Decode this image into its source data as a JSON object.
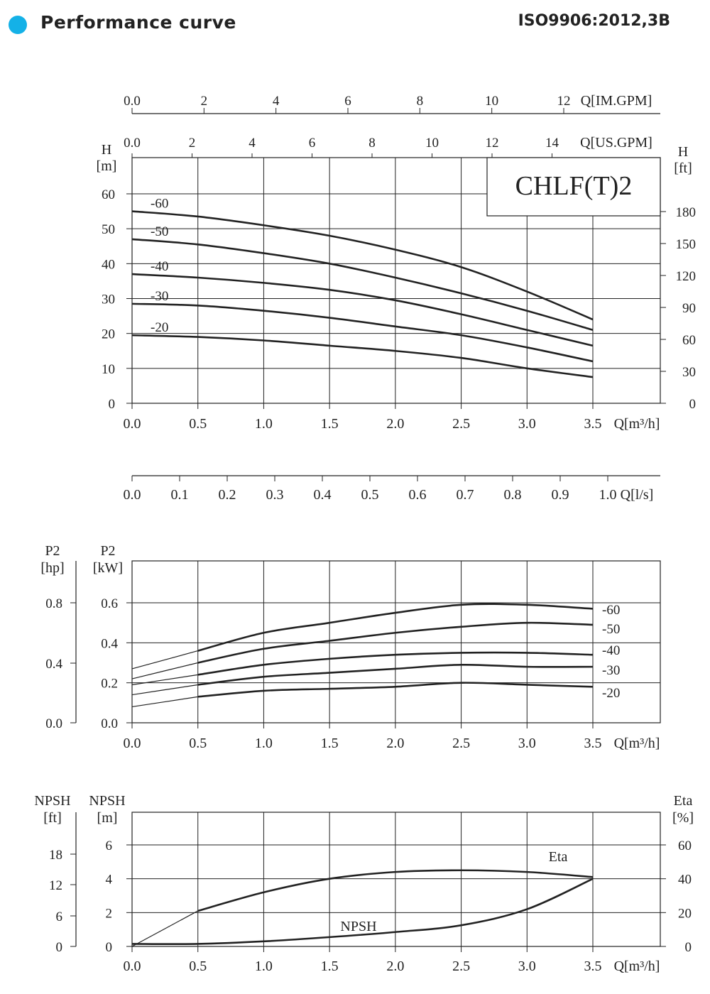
{
  "header": {
    "title": "Performance curve",
    "standard": "ISO9906:2012,3B",
    "bullet_color": "#14b1e7"
  },
  "chart_data": [
    {
      "type": "line",
      "id": "head",
      "model_label": "CHLF(T)2",
      "x_axis": {
        "label": "Q[m³/h]",
        "range": [
          0,
          3.5
        ],
        "ticks": [
          "0.0",
          "0.5",
          "1.0",
          "1.5",
          "2.0",
          "2.5",
          "3.0",
          "3.5"
        ]
      },
      "top_axis_us": {
        "label": "Q[US.GPM]",
        "ticks": [
          "0.0",
          "2",
          "4",
          "6",
          "8",
          "10",
          "12",
          "14"
        ],
        "values": [
          0,
          2,
          4,
          6,
          8,
          10,
          12,
          14
        ]
      },
      "top_axis_im": {
        "label": "Q[IM.GPM]",
        "ticks": [
          "0.0",
          "2",
          "4",
          "6",
          "8",
          "10",
          "12"
        ],
        "values": [
          0,
          2,
          4,
          6,
          8,
          10,
          12
        ]
      },
      "y_left": {
        "label_line1": "H",
        "label_line2": "[m]",
        "range": [
          0,
          60
        ],
        "ticks": [
          "0",
          "10",
          "20",
          "30",
          "40",
          "50",
          "60"
        ]
      },
      "y_right": {
        "label_line1": "H",
        "label_line2": "[ft]",
        "ticks": [
          "0",
          "30",
          "60",
          "90",
          "120",
          "150",
          "180"
        ],
        "values": [
          0,
          30,
          60,
          90,
          120,
          150,
          180
        ]
      },
      "grid": true,
      "x": [
        0,
        0.5,
        1.0,
        1.5,
        2.0,
        2.5,
        3.0,
        3.5
      ],
      "series": [
        {
          "name": "-60",
          "values": [
            55,
            53.5,
            51,
            48,
            44,
            39,
            32,
            24
          ]
        },
        {
          "name": "-50",
          "values": [
            47,
            45.5,
            43,
            40,
            36,
            31.5,
            26.5,
            21
          ]
        },
        {
          "name": "-40",
          "values": [
            37,
            36,
            34.5,
            32.5,
            29.5,
            25.5,
            21,
            16.5
          ]
        },
        {
          "name": "-30",
          "values": [
            28.5,
            28,
            26.5,
            24.5,
            22,
            19.5,
            16,
            12
          ]
        },
        {
          "name": "-20",
          "values": [
            19.5,
            19,
            18,
            16.5,
            15,
            13,
            10,
            7.5
          ]
        }
      ]
    },
    {
      "type": "axis",
      "id": "flow-ls",
      "x_axis": {
        "label": "Q[l/s]",
        "ticks": [
          "0.0",
          "0.1",
          "0.2",
          "0.3",
          "0.4",
          "0.5",
          "0.6",
          "0.7",
          "0.8",
          "0.9",
          "1.0"
        ],
        "values": [
          0,
          0.1,
          0.2,
          0.3,
          0.4,
          0.5,
          0.6,
          0.7,
          0.8,
          0.9,
          1.0
        ]
      }
    },
    {
      "type": "line",
      "id": "power",
      "x_axis": {
        "label": "Q[m³/h]",
        "range": [
          0,
          3.5
        ],
        "ticks": [
          "0.0",
          "0.5",
          "1.0",
          "1.5",
          "2.0",
          "2.5",
          "3.0",
          "3.5"
        ]
      },
      "y_left": {
        "label_line1": "P2",
        "label_line2": "[kW]",
        "range": [
          0,
          0.8
        ],
        "ticks": [
          "0.0",
          "0.2",
          "0.4",
          "0.6"
        ]
      },
      "y_far_left": {
        "label_line1": "P2",
        "label_line2": "[hp]",
        "ticks": [
          "0.0",
          "0.4",
          "0.8"
        ]
      },
      "grid": true,
      "x": [
        0,
        0.5,
        1.0,
        1.5,
        2.0,
        2.5,
        3.0,
        3.5
      ],
      "series": [
        {
          "name": "-60",
          "values": [
            0.27,
            0.36,
            0.45,
            0.5,
            0.55,
            0.59,
            0.59,
            0.57
          ]
        },
        {
          "name": "-50",
          "values": [
            0.22,
            0.3,
            0.37,
            0.41,
            0.45,
            0.48,
            0.5,
            0.49
          ]
        },
        {
          "name": "-40",
          "values": [
            0.19,
            0.24,
            0.29,
            0.32,
            0.34,
            0.35,
            0.35,
            0.34
          ]
        },
        {
          "name": "-30",
          "values": [
            0.14,
            0.19,
            0.23,
            0.25,
            0.27,
            0.29,
            0.28,
            0.28
          ]
        },
        {
          "name": "-20",
          "values": [
            0.08,
            0.13,
            0.16,
            0.17,
            0.18,
            0.2,
            0.19,
            0.18
          ]
        }
      ]
    },
    {
      "type": "line",
      "id": "npsh-eta",
      "x_axis": {
        "label": "Q[m³/h]",
        "range": [
          0,
          3.5
        ],
        "ticks": [
          "0.0",
          "0.5",
          "1.0",
          "1.5",
          "2.0",
          "2.5",
          "3.0",
          "3.5"
        ]
      },
      "y_left": {
        "label_line1": "NPSH",
        "label_line2": "[m]",
        "range": [
          0,
          6
        ],
        "ticks": [
          "0",
          "2",
          "4",
          "6"
        ]
      },
      "y_far_left": {
        "label_line1": "NPSH",
        "label_line2": "[ft]",
        "ticks": [
          "0",
          "6",
          "12",
          "18"
        ]
      },
      "y_right": {
        "label_line1": "Eta",
        "label_line2": "[%]",
        "range": [
          0,
          60
        ],
        "ticks": [
          "0",
          "20",
          "40",
          "60"
        ]
      },
      "grid": true,
      "x": [
        0,
        0.5,
        1.0,
        1.5,
        2.0,
        2.5,
        3.0,
        3.5
      ],
      "series": [
        {
          "name": "Eta",
          "axis": "right",
          "values": [
            0,
            21,
            32,
            40,
            44,
            45,
            44,
            41
          ]
        },
        {
          "name": "NPSH",
          "axis": "left",
          "values": [
            0.15,
            0.15,
            0.3,
            0.55,
            0.85,
            1.25,
            2.2,
            4.0
          ]
        }
      ]
    }
  ]
}
